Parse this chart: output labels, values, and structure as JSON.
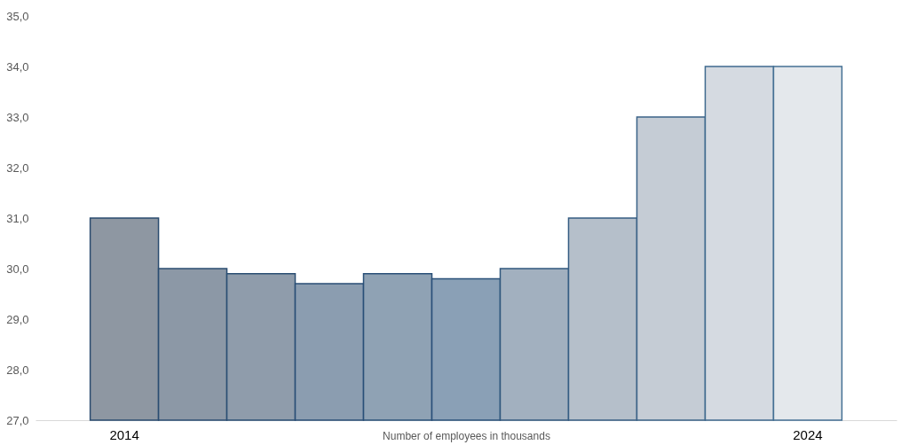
{
  "chart_data": {
    "type": "bar",
    "xlabel": "Number of employees in thousands",
    "categories": [
      "2014",
      null,
      null,
      null,
      null,
      null,
      null,
      null,
      null,
      null,
      "2024"
    ],
    "values": [
      31.0,
      30.0,
      29.9,
      29.7,
      29.9,
      29.8,
      30.0,
      31.0,
      33.0,
      34.0,
      34.0
    ],
    "colors": [
      "#8e97a2",
      "#8c98a6",
      "#8f9cab",
      "#8b9db0",
      "#8fa2b4",
      "#8aa0b6",
      "#a2b0bf",
      "#b5bfca",
      "#c5ccd5",
      "#d5dae1",
      "#e4e8ec"
    ],
    "ylim": [
      27,
      35
    ],
    "yticks": [
      {
        "value": 27,
        "label": "27,0"
      },
      {
        "value": 28,
        "label": "28,0"
      },
      {
        "value": 29,
        "label": "29,0"
      },
      {
        "value": 30,
        "label": "30,0"
      },
      {
        "value": 31,
        "label": "31,0"
      },
      {
        "value": 32,
        "label": "32,0"
      },
      {
        "value": 33,
        "label": "33,0"
      },
      {
        "value": 34,
        "label": "34,0"
      },
      {
        "value": 35,
        "label": "35,0"
      }
    ]
  }
}
